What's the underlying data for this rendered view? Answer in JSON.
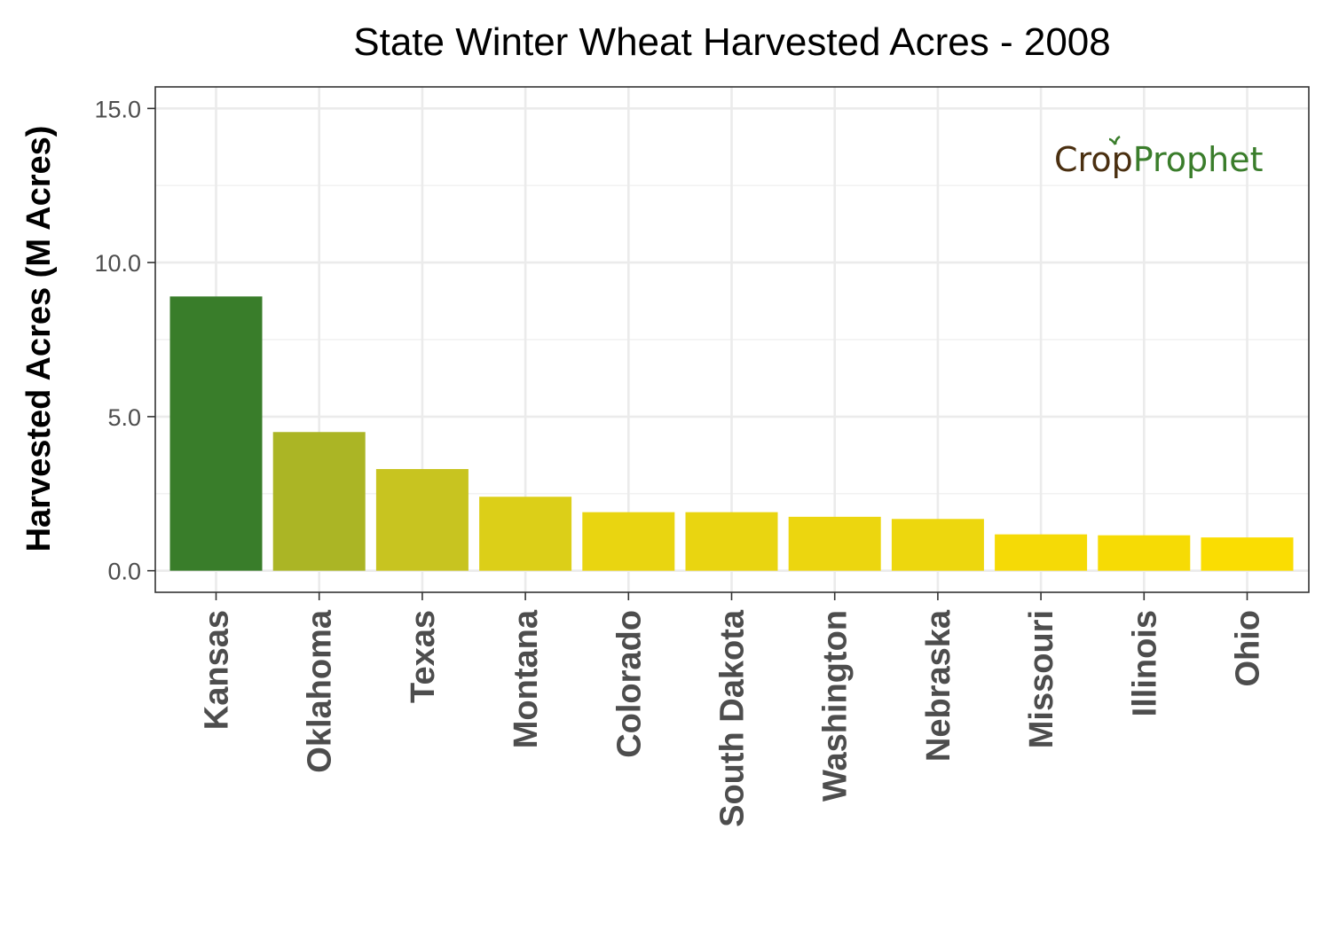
{
  "chart_data": {
    "type": "bar",
    "title": "State Winter Wheat Harvested Acres - 2008",
    "xlabel": "",
    "ylabel": "Harvested Acres (M Acres)",
    "ylim": [
      -0.7,
      15.7
    ],
    "yticks": [
      "0.0",
      "5.0",
      "10.0",
      "15.0"
    ],
    "ytick_values": [
      0,
      5,
      10,
      15
    ],
    "categories": [
      "Kansas",
      "Oklahoma",
      "Texas",
      "Montana",
      "Colorado",
      "South Dakota",
      "Washington",
      "Nebraska",
      "Missouri",
      "Illinois",
      "Ohio"
    ],
    "values": [
      8.9,
      4.5,
      3.3,
      2.4,
      1.9,
      1.9,
      1.75,
      1.68,
      1.18,
      1.15,
      1.08
    ],
    "bar_colors": [
      "#397d2a",
      "#abb525",
      "#c8c420",
      "#dccf18",
      "#e9d511",
      "#e9d511",
      "#ecd60f",
      "#edd70e",
      "#f5da06",
      "#f6db05",
      "#fadd02"
    ],
    "grid": true,
    "legend": "none"
  },
  "logo": {
    "part1": "Cr",
    "part2": "p",
    "part3": "Prophet",
    "color_dark": "#4a2f10",
    "color_green": "#3a7d2b"
  }
}
